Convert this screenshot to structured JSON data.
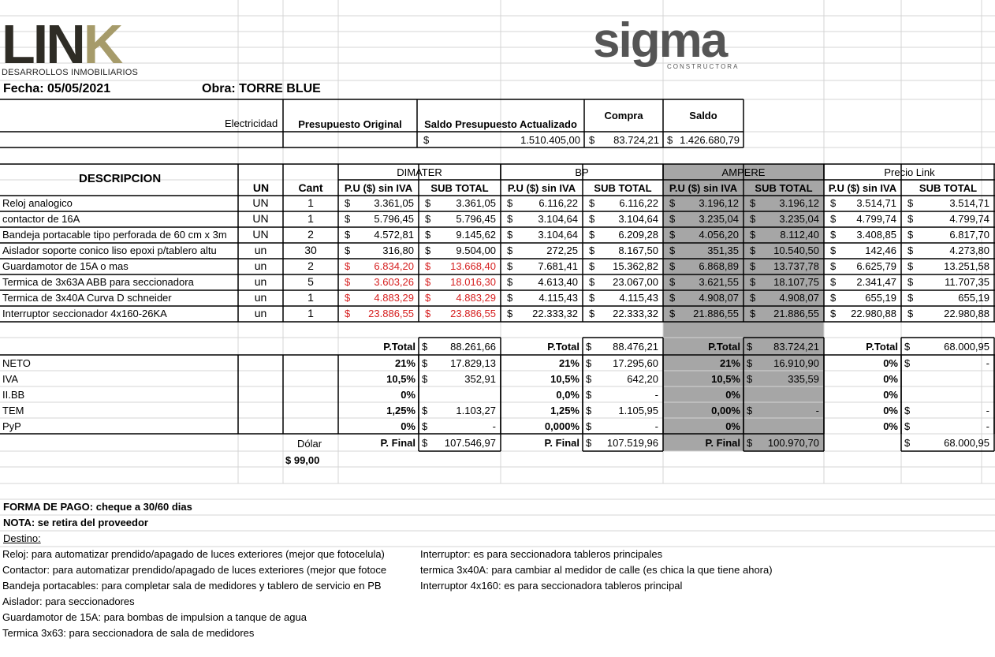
{
  "logos": {
    "link_name": "LIN",
    "link_k": "K",
    "link_sub": "DESARROLLOS INMOBILIARIOS",
    "sigma_name": "sigma",
    "sigma_sub": "CONSTRUCTORA"
  },
  "header": {
    "fecha": "Fecha: 05/05/2021",
    "obra": "Obra:  TORRE BLUE"
  },
  "summary": {
    "label": "Electricidad",
    "col1": "Presupuesto Original",
    "col2": "Saldo Presupuesto Actualizado",
    "col3": "Compra",
    "col4": "Saldo",
    "currency": "$",
    "v2": "1.510.405,00",
    "v3": "83.724,21",
    "v4": "1.426.680,79"
  },
  "table": {
    "desc_header": "DESCRIPCION",
    "un_header": "UN",
    "cant_header": "Cant",
    "pu_header": "P.U ($) sin IVA",
    "sub_header": "SUB TOTAL",
    "suppliers": [
      "DIMATER",
      "BP",
      "AMPERE",
      "Precio Link"
    ],
    "rows": [
      {
        "desc": "Reloj analogico",
        "un": "UN",
        "cant": "1",
        "vals": [
          "3.361,05",
          "3.361,05",
          "6.116,22",
          "6.116,22",
          "3.196,12",
          "3.196,12",
          "3.514,71",
          "3.514,71"
        ]
      },
      {
        "desc": "contactor de 16A",
        "un": "UN",
        "cant": "1",
        "vals": [
          "5.796,45",
          "5.796,45",
          "3.104,64",
          "3.104,64",
          "3.235,04",
          "3.235,04",
          "4.799,74",
          "4.799,74"
        ]
      },
      {
        "desc": "Bandeja portacable tipo perforada de 60 cm x 3m",
        "un": "UN",
        "cant": "2",
        "vals": [
          "4.572,81",
          "9.145,62",
          "3.104,64",
          "6.209,28",
          "4.056,20",
          "8.112,40",
          "3.408,85",
          "6.817,70"
        ]
      },
      {
        "desc": "Aislador soporte conico liso epoxi p/tablero altu",
        "un": "un",
        "cant": "30",
        "vals": [
          "316,80",
          "9.504,00",
          "272,25",
          "8.167,50",
          "351,35",
          "10.540,50",
          "142,46",
          "4.273,80"
        ]
      },
      {
        "desc": "Guardamotor de 15A o mas",
        "un": "un",
        "cant": "2",
        "vals": [
          "6.834,20",
          "13.668,40",
          "7.681,41",
          "15.362,82",
          "6.868,89",
          "13.737,78",
          "6.625,79",
          "13.251,58"
        ]
      },
      {
        "desc": "Termica de 3x63A ABB para seccionadora",
        "un": "un",
        "cant": "5",
        "vals": [
          "3.603,26",
          "18.016,30",
          "4.613,40",
          "23.067,00",
          "3.621,55",
          "18.107,75",
          "2.341,47",
          "11.707,35"
        ]
      },
      {
        "desc": "Termica de 3x40A Curva D schneider",
        "un": "un",
        "cant": "1",
        "vals": [
          "4.883,29",
          "4.883,29",
          "4.115,43",
          "4.115,43",
          "4.908,07",
          "4.908,07",
          "655,19",
          "655,19"
        ]
      },
      {
        "desc": "Interruptor seccionador 4x160-26KA",
        "un": "un",
        "cant": "1",
        "vals": [
          "23.886,55",
          "23.886,55",
          "22.333,32",
          "22.333,32",
          "21.886,55",
          "21.886,55",
          "22.980,88",
          "22.980,88"
        ]
      }
    ],
    "colors": {
      "red": "#d62020",
      "ampere_fill": "#a6a6a6"
    }
  },
  "totals": {
    "ptotal_label": "P.Total",
    "pfinal_label": "P. Final",
    "ptotal": [
      "88.261,66",
      "88.476,21",
      "83.724,21",
      "68.000,95"
    ],
    "row_labels": [
      "NETO",
      "IVA",
      "II.BB",
      "TEM",
      "PyP"
    ],
    "dimater": {
      "pct": [
        "21%",
        "10,5%",
        "0%",
        "1,25%",
        "0%"
      ],
      "val": [
        "17.829,13",
        "352,91",
        "",
        "1.103,27",
        "-"
      ]
    },
    "bp": {
      "pct": [
        "21%",
        "10,5%",
        "0,0%",
        "1,25%",
        "0,000%"
      ],
      "val": [
        "17.295,60",
        "642,20",
        "-",
        "1.105,95",
        "-"
      ]
    },
    "ampere": {
      "pct": [
        "21%",
        "10,5%",
        "0%",
        "0,00%",
        "0%"
      ],
      "val": [
        "16.910,90",
        "335,59",
        "",
        "-",
        ""
      ]
    },
    "link": {
      "pct": [
        "0%",
        "0%",
        "0%",
        "0%",
        "0%"
      ],
      "val": [
        "-",
        "",
        "",
        "-",
        "-"
      ]
    },
    "pfinal": [
      "107.546,97",
      "107.519,96",
      "100.970,70",
      "68.000,95"
    ],
    "dolar_label": "Dólar",
    "dolar_value": "$ 99,00"
  },
  "notes": {
    "forma_pago": "FORMA DE PAGO: cheque a 30/60 dias",
    "nota": "NOTA: se retira del proveedor",
    "destino": "Destino:",
    "left": [
      "Reloj: para automatizar prendido/apagado de luces exteriores (mejor que fotocelula)",
      "Contactor: para automatizar prendido/apagado de luces exteriores (mejor que fotoce",
      "Bandeja portacables: para completar sala de medidores y tablero de servicio en PB",
      "Aislador: para seccionadores",
      "Guardamotor de 15A: para bombas de impulsion a tanque de agua",
      "Termica 3x63: para seccionadora de sala de medidores"
    ],
    "right": [
      "Interruptor: es para seccionadora tableros principales",
      "termica 3x40A: para cambiar al medidor de calle (es chica la que tiene ahora)",
      "Interruptor 4x160: es para seccionadora tableros principal"
    ]
  }
}
